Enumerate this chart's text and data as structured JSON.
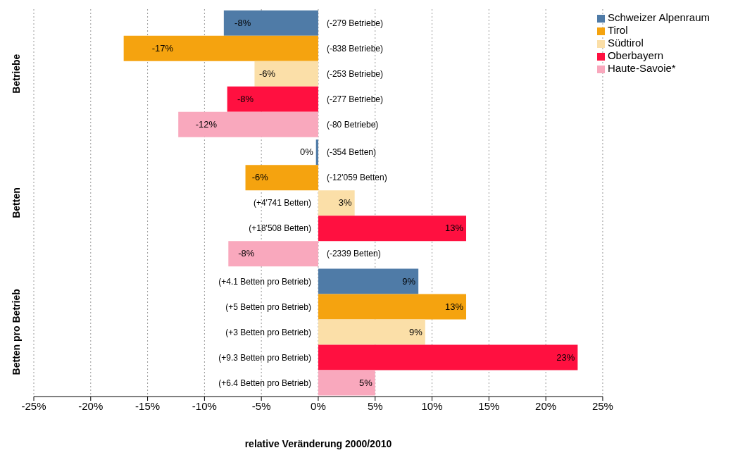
{
  "chart_data": {
    "type": "bar",
    "orientation": "horizontal",
    "xlabel": "relative Veränderung 2000/2010",
    "categories": [
      "Betriebe",
      "Betten",
      "Betten pro Betrieb"
    ],
    "series": [
      {
        "name": "Schweizer Alpenraum",
        "color": "#4f7ba7",
        "values": [
          -8.3,
          -0.2,
          8.8
        ],
        "value_labels": [
          "-8%",
          "0%",
          "9%"
        ]
      },
      {
        "name": "Tirol",
        "color": "#f5a30f",
        "values": [
          -17.1,
          -6.4,
          13.0
        ],
        "value_labels": [
          "-17%",
          "-6%",
          "13%"
        ]
      },
      {
        "name": "Südtirol",
        "color": "#fbdfa8",
        "values": [
          -5.6,
          3.2,
          9.4
        ],
        "value_labels": [
          "-6%",
          "3%",
          "9%"
        ]
      },
      {
        "name": "Oberbayern",
        "color": "#ff1040",
        "values": [
          -8.0,
          13.0,
          22.8
        ],
        "value_labels": [
          "-8%",
          "13%",
          "23%"
        ]
      },
      {
        "name": "Haute-Savoie*",
        "color": "#f9a8bd",
        "values": [
          -12.3,
          -7.9,
          5.0
        ],
        "value_labels": [
          "-12%",
          "-8%",
          "5%"
        ]
      }
    ],
    "annotations": [
      "(-279 Betriebe)",
      "(-838 Betriebe)",
      "(-253 Betriebe)",
      "(-277 Betriebe)",
      "(-80 Betriebe)",
      "(-354 Betten)",
      "(-12'059 Betten)",
      "(+4'741 Betten)",
      "(+18'508 Betten)",
      "(-2339 Betten)",
      "(+4.1 Betten pro Betrieb)",
      "(+5 Betten pro Betrieb)",
      "(+3 Betten pro Betrieb)",
      "(+9.3 Betten pro Betrieb)",
      "(+6.4 Betten pro Betrieb)"
    ],
    "xlim": [
      -25,
      25
    ],
    "xticks": [
      {
        "value": -25,
        "label": "-25%"
      },
      {
        "value": -20,
        "label": "-20%"
      },
      {
        "value": -15,
        "label": "-15%"
      },
      {
        "value": -10,
        "label": "-10%"
      },
      {
        "value": -5,
        "label": "-5%"
      },
      {
        "value": 0,
        "label": "0%"
      },
      {
        "value": 5,
        "label": "5%"
      },
      {
        "value": 10,
        "label": "10%"
      },
      {
        "value": 15,
        "label": "15%"
      },
      {
        "value": 20,
        "label": "20%"
      },
      {
        "value": 25,
        "label": "25%"
      }
    ],
    "grid": "x",
    "legend": "top right"
  }
}
